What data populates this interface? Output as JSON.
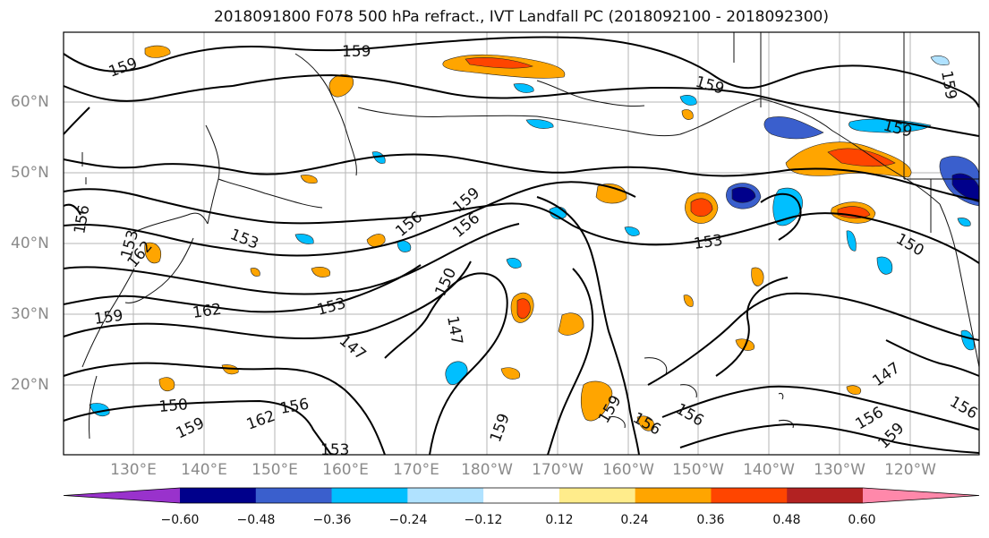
{
  "title": "2018091800 F078 500 hPa refract., IVT Landfall PC (2018092100 - 2018092300)",
  "lat_labels": [
    "60°N",
    "50°N",
    "40°N",
    "30°N",
    "20°N"
  ],
  "lon_labels": [
    "130°E",
    "140°E",
    "150°E",
    "160°E",
    "170°E",
    "180°W",
    "170°W",
    "160°W",
    "150°W",
    "140°W",
    "130°W",
    "120°W"
  ],
  "contour_labels": [
    "159",
    "159",
    "159",
    "159",
    "159",
    "156",
    "153",
    "162",
    "159",
    "162",
    "153",
    "156",
    "159",
    "156",
    "150",
    "147",
    "153",
    "147",
    "150",
    "159",
    "159",
    "162",
    "156",
    "153",
    "156",
    "159",
    "156",
    "153",
    "150",
    "147",
    "156",
    "156",
    "159"
  ],
  "colorbar": {
    "ticks": [
      "−0.60",
      "−0.48",
      "−0.36",
      "−0.24",
      "−0.12",
      "0.12",
      "0.24",
      "0.36",
      "0.48",
      "0.60"
    ],
    "colors": [
      "#9932cc",
      "#00008b",
      "#3a5fcd",
      "#00bfff",
      "#b0e2ff",
      "#ffffff",
      "#ffec8b",
      "#ffa500",
      "#ff4500",
      "#b22222",
      "#ff88aa"
    ]
  }
}
